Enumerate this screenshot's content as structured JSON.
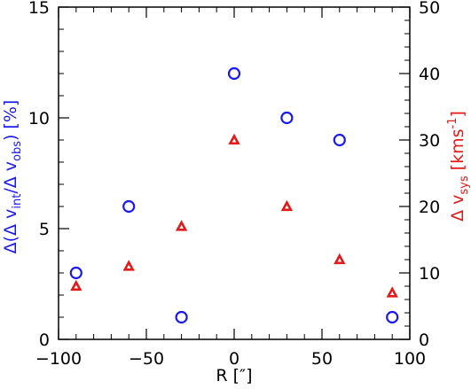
{
  "chart_data": {
    "type": "scatter",
    "title": "",
    "xlabel": "R [″]",
    "ylabel_left": {
      "text": "Δ(Δ v_int/Δ v_obs) [%]",
      "color": "#1a1af0"
    },
    "ylabel_right": {
      "text": "Δ v_sys [kms^-1]",
      "color": "#e31a1a"
    },
    "xlim": [
      -100,
      100
    ],
    "ylim_left": [
      0,
      15
    ],
    "ylim_right": [
      0,
      50
    ],
    "x_ticks": [
      -100,
      -50,
      0,
      50,
      100
    ],
    "x_tick_labels": [
      "−100",
      "−50",
      "0",
      "50",
      "100"
    ],
    "y_left_ticks": [
      0,
      5,
      10,
      15
    ],
    "y_left_tick_labels": [
      "0",
      "5",
      "10",
      "15"
    ],
    "y_right_ticks": [
      0,
      10,
      20,
      30,
      40,
      50
    ],
    "y_right_tick_labels": [
      "0",
      "10",
      "20",
      "30",
      "40",
      "50"
    ],
    "grid": false,
    "series": [
      {
        "axis": "left",
        "marker": "circle",
        "color": "#1a1af0",
        "points": [
          {
            "x": -90,
            "y": 3
          },
          {
            "x": -60,
            "y": 6
          },
          {
            "x": -30,
            "y": 1
          },
          {
            "x": 0,
            "y": 12
          },
          {
            "x": 30,
            "y": 10
          },
          {
            "x": 60,
            "y": 9
          },
          {
            "x": 90,
            "y": 1
          }
        ]
      },
      {
        "axis": "right",
        "marker": "triangle",
        "color": "#e31a1a",
        "points": [
          {
            "x": -90,
            "y": 8
          },
          {
            "x": -60,
            "y": 11
          },
          {
            "x": -30,
            "y": 17
          },
          {
            "x": 0,
            "y": 30
          },
          {
            "x": 30,
            "y": 20
          },
          {
            "x": 60,
            "y": 12
          },
          {
            "x": 90,
            "y": 7
          }
        ]
      }
    ]
  }
}
